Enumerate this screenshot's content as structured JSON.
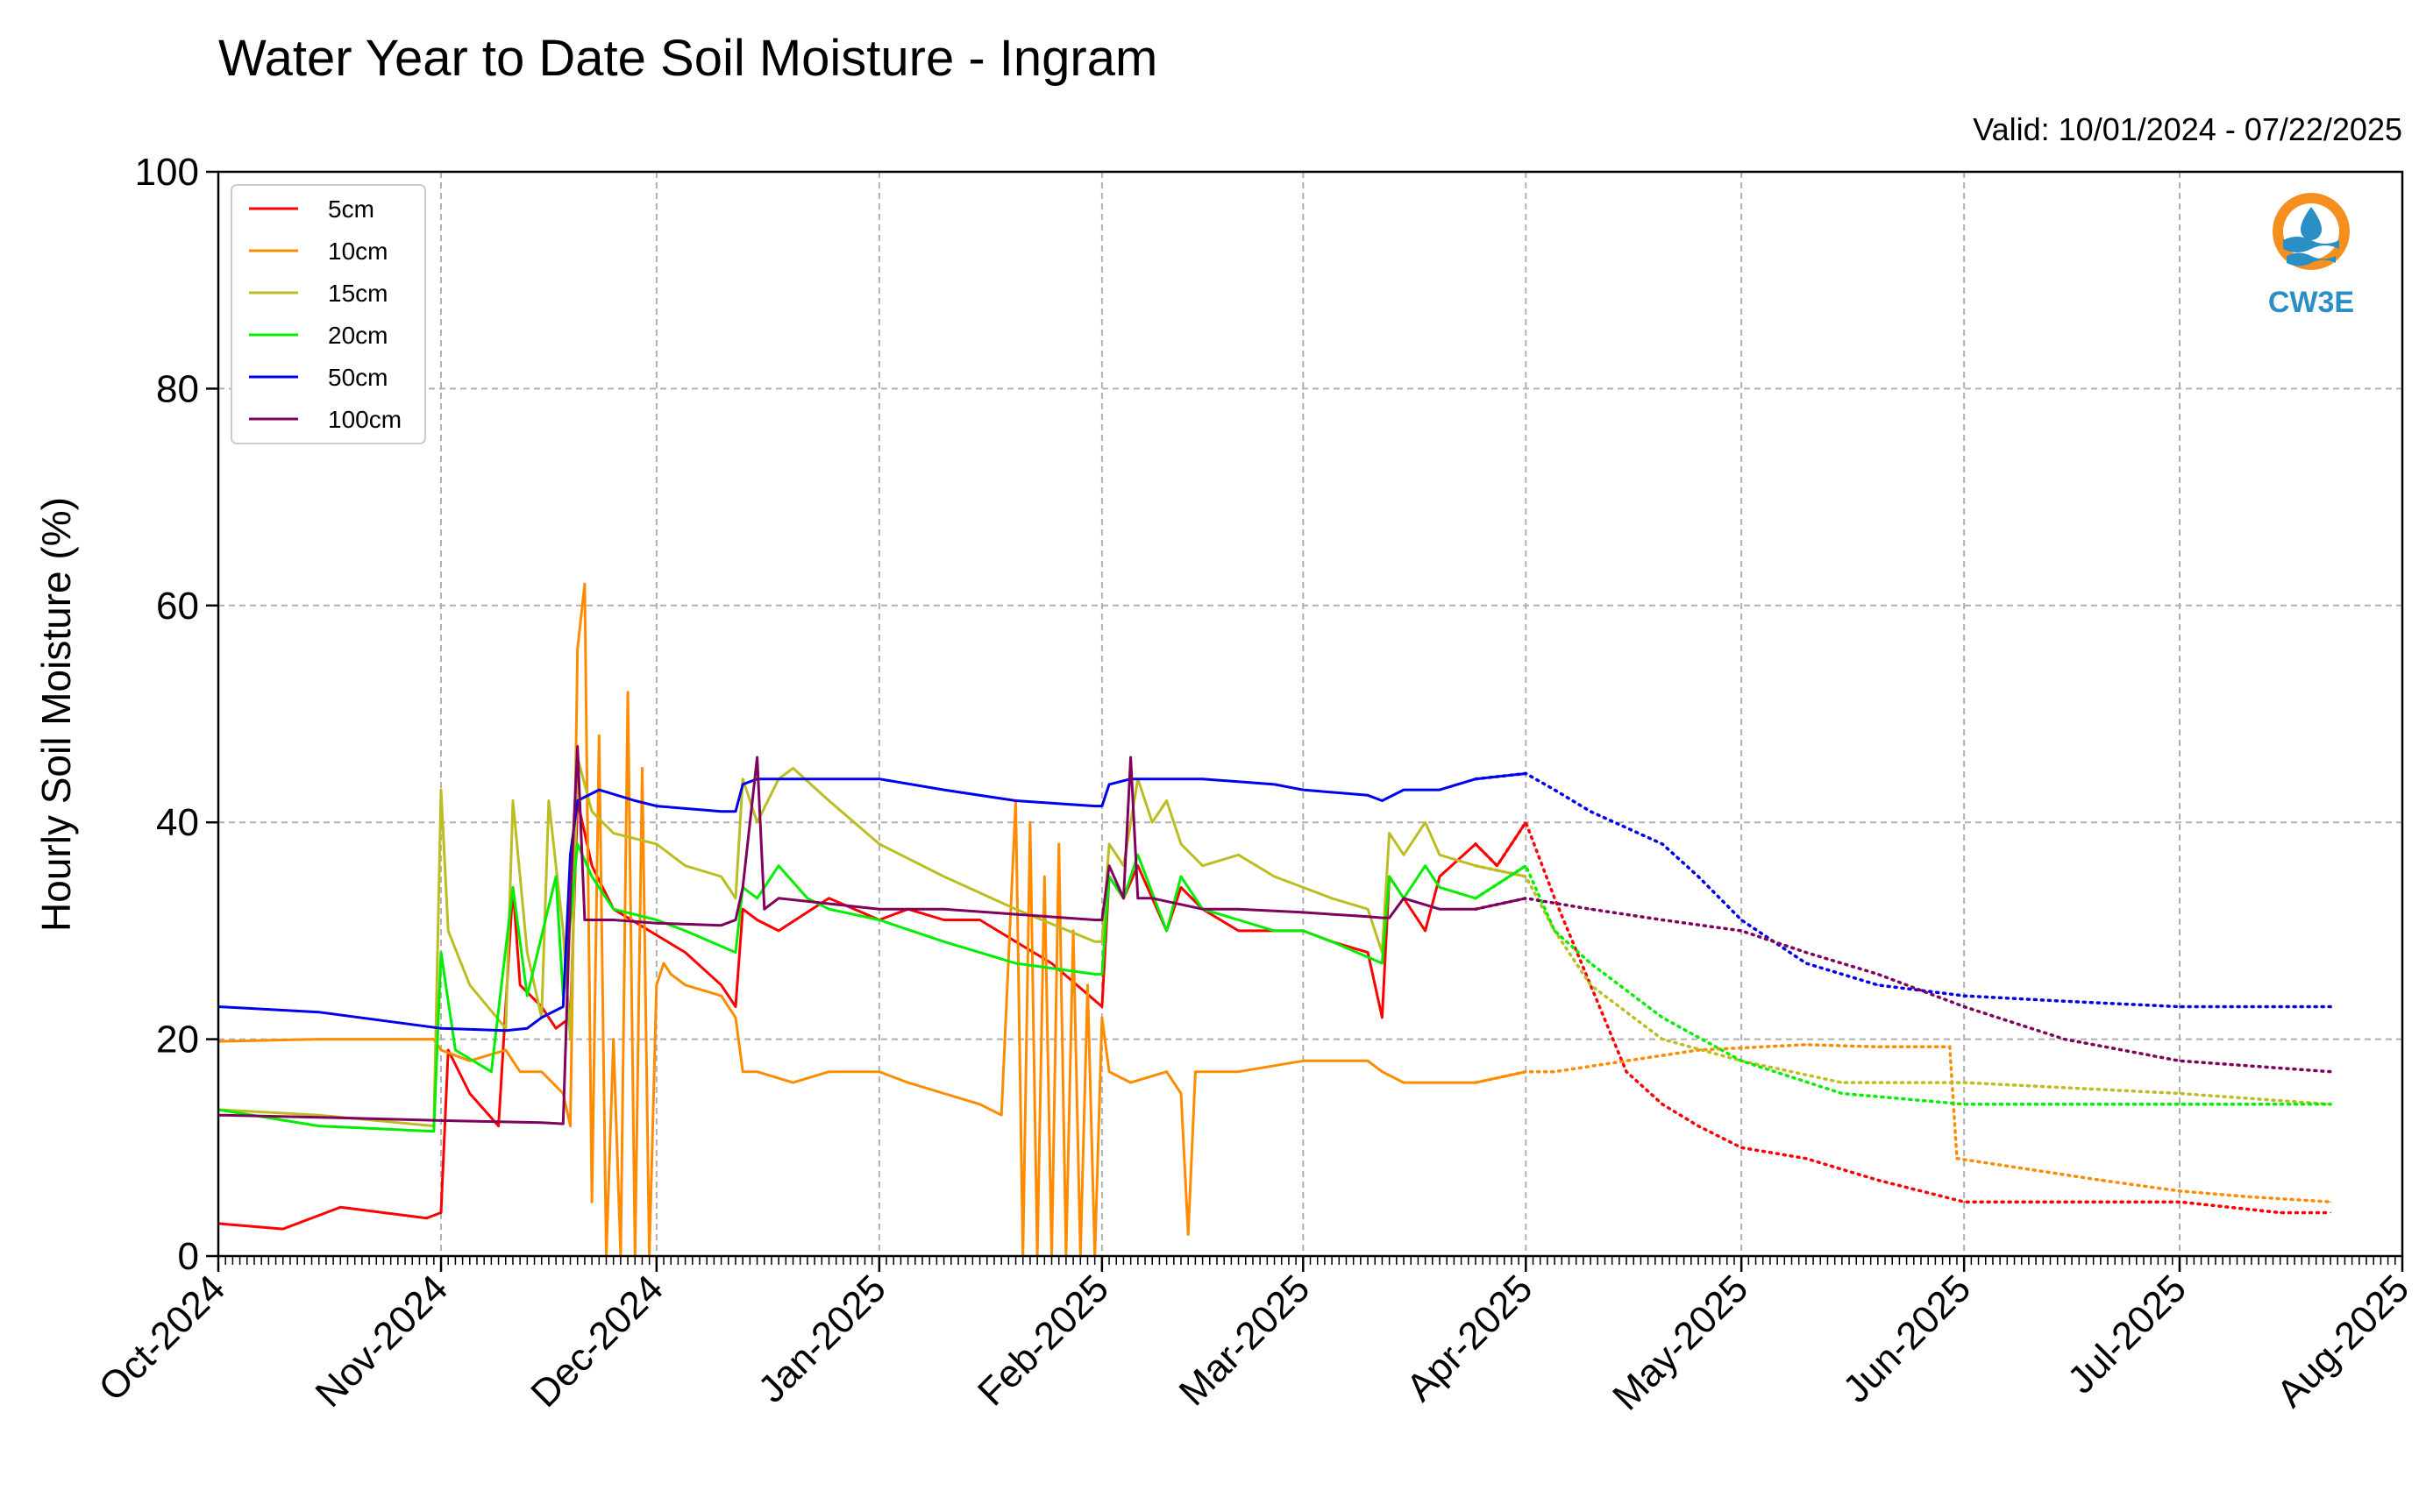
{
  "chart_data": {
    "type": "line",
    "title": "Water Year to Date Soil Moisture - Ingram",
    "subtitle": "Valid: 10/01/2024 - 07/22/2025",
    "ylabel": "Hourly Soil Moisture (%)",
    "xlabel": "",
    "ylim": [
      0,
      100
    ],
    "yticks": [
      0,
      20,
      40,
      60,
      80,
      100
    ],
    "xlim": [
      "2024-10-01",
      "2025-08-01"
    ],
    "xticks": [
      {
        "date": "2024-10-01",
        "label": "Oct-2024"
      },
      {
        "date": "2024-11-01",
        "label": "Nov-2024"
      },
      {
        "date": "2024-12-01",
        "label": "Dec-2024"
      },
      {
        "date": "2025-01-01",
        "label": "Jan-2025"
      },
      {
        "date": "2025-02-01",
        "label": "Feb-2025"
      },
      {
        "date": "2025-03-01",
        "label": "Mar-2025"
      },
      {
        "date": "2025-04-01",
        "label": "Apr-2025"
      },
      {
        "date": "2025-05-01",
        "label": "May-2025"
      },
      {
        "date": "2025-06-01",
        "label": "Jun-2025"
      },
      {
        "date": "2025-07-01",
        "label": "Jul-2025"
      },
      {
        "date": "2025-08-01",
        "label": "Aug-2025"
      }
    ],
    "grid": true,
    "legend_position": "top-left",
    "logo_text": "CW3E",
    "series": [
      {
        "name": "5cm",
        "color": "#ff0000",
        "x": [
          "2024-10-01",
          "2024-10-10",
          "2024-10-18",
          "2024-10-30",
          "2024-11-01",
          "2024-11-02",
          "2024-11-05",
          "2024-11-09",
          "2024-11-11",
          "2024-11-12",
          "2024-11-15",
          "2024-11-17",
          "2024-11-19",
          "2024-11-20",
          "2024-11-22",
          "2024-11-25",
          "2024-11-30",
          "2024-12-05",
          "2024-12-10",
          "2024-12-12",
          "2024-12-13",
          "2024-12-15",
          "2024-12-18",
          "2024-12-25",
          "2025-01-01",
          "2025-01-05",
          "2025-01-10",
          "2025-01-15",
          "2025-01-20",
          "2025-01-25",
          "2025-02-01",
          "2025-02-02",
          "2025-02-04",
          "2025-02-06",
          "2025-02-10",
          "2025-02-12",
          "2025-02-15",
          "2025-02-20",
          "2025-02-25",
          "2025-03-01",
          "2025-03-05",
          "2025-03-10",
          "2025-03-12",
          "2025-03-13",
          "2025-03-15",
          "2025-03-18",
          "2025-03-20",
          "2025-03-25",
          "2025-03-28",
          "2025-04-01",
          "2025-04-05",
          "2025-04-10",
          "2025-04-15",
          "2025-04-20",
          "2025-04-25",
          "2025-05-01",
          "2025-05-10",
          "2025-05-20",
          "2025-06-01",
          "2025-06-15",
          "2025-07-01",
          "2025-07-15",
          "2025-07-22"
        ],
        "values": [
          3,
          2.5,
          4.5,
          3.5,
          4,
          19,
          15,
          12,
          34,
          25,
          23,
          21,
          22,
          42,
          36,
          32,
          30,
          28,
          25,
          23,
          32,
          31,
          30,
          33,
          31,
          32,
          31,
          31,
          29,
          27,
          23,
          35,
          33,
          36,
          30,
          34,
          32,
          30,
          30,
          30,
          29,
          28,
          22,
          35,
          33,
          30,
          35,
          38,
          36,
          40,
          33,
          25,
          17,
          14,
          12,
          10,
          9,
          7,
          5,
          5,
          5,
          4,
          4
        ]
      },
      {
        "name": "10cm",
        "color": "#ff8c00",
        "x": [
          "2024-10-01",
          "2024-10-15",
          "2024-10-31",
          "2024-11-01",
          "2024-11-05",
          "2024-11-10",
          "2024-11-12",
          "2024-11-15",
          "2024-11-18",
          "2024-11-19",
          "2024-11-20",
          "2024-11-21",
          "2024-11-22",
          "2024-11-23",
          "2024-11-24",
          "2024-11-25",
          "2024-11-26",
          "2024-11-27",
          "2024-11-28",
          "2024-11-29",
          "2024-11-30",
          "2024-12-01",
          "2024-12-02",
          "2024-12-03",
          "2024-12-05",
          "2024-12-10",
          "2024-12-12",
          "2024-12-13",
          "2024-12-15",
          "2024-12-20",
          "2024-12-25",
          "2025-01-01",
          "2025-01-05",
          "2025-01-10",
          "2025-01-15",
          "2025-01-18",
          "2025-01-20",
          "2025-01-21",
          "2025-01-22",
          "2025-01-23",
          "2025-01-24",
          "2025-01-25",
          "2025-01-26",
          "2025-01-27",
          "2025-01-28",
          "2025-01-29",
          "2025-01-30",
          "2025-01-31",
          "2025-02-01",
          "2025-02-02",
          "2025-02-05",
          "2025-02-10",
          "2025-02-12",
          "2025-02-13",
          "2025-02-14",
          "2025-02-20",
          "2025-03-01",
          "2025-03-10",
          "2025-03-12",
          "2025-03-15",
          "2025-03-20",
          "2025-03-25",
          "2025-04-01",
          "2025-04-05",
          "2025-04-15",
          "2025-04-25",
          "2025-05-10",
          "2025-05-20",
          "2025-05-30",
          "2025-05-31",
          "2025-06-10",
          "2025-06-20",
          "2025-07-01",
          "2025-07-10",
          "2025-07-22"
        ],
        "values": [
          19.8,
          20,
          20,
          19,
          18,
          19,
          17,
          17,
          15,
          12,
          56,
          62,
          5,
          48,
          0,
          20,
          0,
          52,
          0,
          45,
          0,
          25,
          27,
          26,
          25,
          24,
          22,
          17,
          17,
          16,
          17,
          17,
          16,
          15,
          14,
          13,
          42,
          0,
          40,
          0,
          35,
          0,
          38,
          0,
          30,
          0,
          25,
          0,
          22,
          17,
          16,
          17,
          15,
          2,
          17,
          17,
          18,
          18,
          17,
          16,
          16,
          16,
          17,
          17,
          18,
          19,
          19.5,
          19.3,
          19.3,
          9,
          8,
          7,
          6,
          5.5,
          5
        ]
      },
      {
        "name": "15cm",
        "color": "#bcbd22",
        "x": [
          "2024-10-01",
          "2024-10-15",
          "2024-10-31",
          "2024-11-01",
          "2024-11-02",
          "2024-11-05",
          "2024-11-10",
          "2024-11-11",
          "2024-11-13",
          "2024-11-15",
          "2024-11-16",
          "2024-11-18",
          "2024-11-19",
          "2024-11-20",
          "2024-11-22",
          "2024-11-25",
          "2024-12-01",
          "2024-12-05",
          "2024-12-10",
          "2024-12-12",
          "2024-12-13",
          "2024-12-15",
          "2024-12-18",
          "2024-12-20",
          "2024-12-25",
          "2025-01-01",
          "2025-01-10",
          "2025-01-20",
          "2025-01-31",
          "2025-02-01",
          "2025-02-02",
          "2025-02-04",
          "2025-02-06",
          "2025-02-08",
          "2025-02-10",
          "2025-02-12",
          "2025-02-15",
          "2025-02-20",
          "2025-02-25",
          "2025-03-01",
          "2025-03-05",
          "2025-03-10",
          "2025-03-12",
          "2025-03-13",
          "2025-03-15",
          "2025-03-18",
          "2025-03-20",
          "2025-03-25",
          "2025-04-01",
          "2025-04-05",
          "2025-04-10",
          "2025-04-20",
          "2025-05-01",
          "2025-05-15",
          "2025-06-01",
          "2025-07-01",
          "2025-07-22"
        ],
        "values": [
          13.5,
          13,
          12,
          43,
          30,
          25,
          21,
          42,
          28,
          22,
          42,
          30,
          20,
          46,
          41,
          39,
          38,
          36,
          35,
          33,
          44,
          40,
          44,
          45,
          42,
          38,
          35,
          32,
          29,
          29,
          38,
          36,
          44,
          40,
          42,
          38,
          36,
          37,
          35,
          34,
          33,
          32,
          28,
          39,
          37,
          40,
          37,
          36,
          35,
          30,
          25,
          20,
          18,
          16,
          16,
          15,
          14
        ]
      },
      {
        "name": "20cm",
        "color": "#00ee00",
        "x": [
          "2024-10-01",
          "2024-10-15",
          "2024-10-31",
          "2024-11-01",
          "2024-11-03",
          "2024-11-08",
          "2024-11-11",
          "2024-11-13",
          "2024-11-17",
          "2024-11-18",
          "2024-11-20",
          "2024-11-22",
          "2024-11-25",
          "2024-12-01",
          "2024-12-05",
          "2024-12-12",
          "2024-12-13",
          "2024-12-15",
          "2024-12-18",
          "2024-12-22",
          "2024-12-25",
          "2025-01-01",
          "2025-01-10",
          "2025-01-20",
          "2025-01-31",
          "2025-02-01",
          "2025-02-02",
          "2025-02-04",
          "2025-02-06",
          "2025-02-10",
          "2025-02-12",
          "2025-02-15",
          "2025-02-20",
          "2025-02-25",
          "2025-03-01",
          "2025-03-05",
          "2025-03-12",
          "2025-03-13",
          "2025-03-15",
          "2025-03-18",
          "2025-03-20",
          "2025-03-25",
          "2025-04-01",
          "2025-04-05",
          "2025-04-10",
          "2025-04-20",
          "2025-05-01",
          "2025-05-15",
          "2025-06-01",
          "2025-07-01",
          "2025-07-22"
        ],
        "values": [
          13.5,
          12,
          11.5,
          28,
          19,
          17,
          34,
          24,
          35,
          24,
          38,
          35,
          32,
          31,
          30,
          28,
          34,
          33,
          36,
          33,
          32,
          31,
          29,
          27,
          26,
          26,
          35,
          33,
          37,
          30,
          35,
          32,
          31,
          30,
          30,
          29,
          27,
          35,
          33,
          36,
          34,
          33,
          36,
          30,
          27,
          22,
          18,
          15,
          14,
          14,
          14
        ]
      },
      {
        "name": "50cm",
        "color": "#0000ee",
        "x": [
          "2024-10-01",
          "2024-10-15",
          "2024-11-01",
          "2024-11-10",
          "2024-11-13",
          "2024-11-15",
          "2024-11-18",
          "2024-11-19",
          "2024-11-20",
          "2024-11-23",
          "2024-11-28",
          "2024-12-01",
          "2024-12-10",
          "2024-12-12",
          "2024-12-13",
          "2024-12-15",
          "2024-12-25",
          "2025-01-01",
          "2025-01-10",
          "2025-01-20",
          "2025-01-31",
          "2025-02-01",
          "2025-02-02",
          "2025-02-05",
          "2025-02-15",
          "2025-02-25",
          "2025-03-01",
          "2025-03-10",
          "2025-03-12",
          "2025-03-15",
          "2025-03-20",
          "2025-03-25",
          "2025-04-01",
          "2025-04-05",
          "2025-04-10",
          "2025-04-20",
          "2025-04-25",
          "2025-05-01",
          "2025-05-10",
          "2025-05-20",
          "2025-06-01",
          "2025-06-15",
          "2025-07-01",
          "2025-07-22"
        ],
        "values": [
          23,
          22.5,
          21,
          20.8,
          21,
          22,
          23,
          37,
          42,
          43,
          42,
          41.5,
          41,
          41,
          43.5,
          44,
          44,
          44,
          43,
          42,
          41.5,
          41.5,
          43.5,
          44,
          44,
          43.5,
          43,
          42.5,
          42,
          43,
          43,
          44,
          44.5,
          43,
          41,
          38,
          35,
          31,
          27,
          25,
          24,
          23.5,
          23,
          23
        ]
      },
      {
        "name": "100cm",
        "color": "#800060",
        "x": [
          "2024-10-01",
          "2024-10-15",
          "2024-11-01",
          "2024-11-15",
          "2024-11-18",
          "2024-11-19",
          "2024-11-20",
          "2024-11-21",
          "2024-11-22",
          "2024-11-25",
          "2024-12-01",
          "2024-12-10",
          "2024-12-12",
          "2024-12-13",
          "2024-12-15",
          "2024-12-16",
          "2024-12-18",
          "2024-12-25",
          "2025-01-01",
          "2025-01-10",
          "2025-01-31",
          "2025-02-01",
          "2025-02-02",
          "2025-02-04",
          "2025-02-05",
          "2025-02-06",
          "2025-02-08",
          "2025-02-15",
          "2025-02-20",
          "2025-03-01",
          "2025-03-10",
          "2025-03-12",
          "2025-03-13",
          "2025-03-15",
          "2025-03-20",
          "2025-03-25",
          "2025-04-01",
          "2025-04-10",
          "2025-04-20",
          "2025-05-01",
          "2025-05-10",
          "2025-05-20",
          "2025-06-01",
          "2025-06-15",
          "2025-07-01",
          "2025-07-22"
        ],
        "values": [
          13,
          12.8,
          12.5,
          12.3,
          12.2,
          33,
          47,
          31,
          31,
          31,
          30.7,
          30.5,
          31,
          34,
          46,
          32,
          33,
          32.5,
          32,
          32,
          31,
          31,
          36,
          33,
          46,
          33,
          33,
          32,
          32,
          31.7,
          31.3,
          31.2,
          31.2,
          33,
          32,
          32,
          33,
          32,
          31,
          30,
          28,
          26,
          23,
          20,
          18,
          17
        ]
      }
    ]
  }
}
